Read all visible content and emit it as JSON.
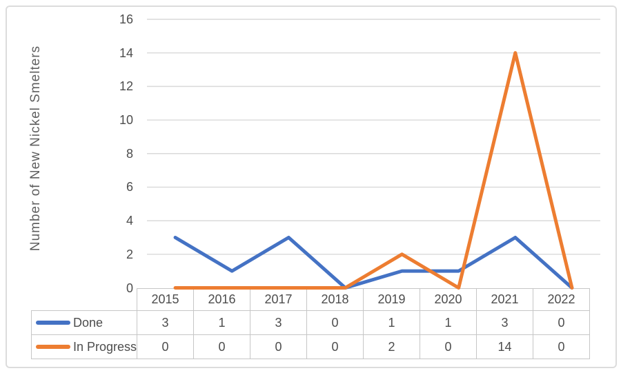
{
  "chart_data": {
    "type": "line",
    "title": "",
    "xlabel": "",
    "ylabel": "Number of New Nickel Smelters",
    "categories": [
      "2015",
      "2016",
      "2017",
      "2018",
      "2019",
      "2020",
      "2021",
      "2022"
    ],
    "series": [
      {
        "name": "Done",
        "color": "#4472C4",
        "values": [
          3,
          1,
          3,
          0,
          1,
          1,
          3,
          0
        ]
      },
      {
        "name": "In Progress",
        "color": "#ED7D31",
        "values": [
          0,
          0,
          0,
          0,
          2,
          0,
          14,
          0
        ]
      }
    ],
    "ylim": [
      0,
      16
    ],
    "yticks": [
      0,
      2,
      4,
      6,
      8,
      10,
      12,
      14,
      16
    ],
    "grid": "horizontal",
    "legend_position": "data-table-left",
    "data_table_shown": true
  },
  "colors": {
    "background": "#FFFFFF",
    "frame_border": "#DCDCDC",
    "gridline": "#D9D9D9",
    "table_border": "#C6C6C6",
    "text": "#4D4D4D",
    "axis_title_text": "#5F5F5F",
    "series_done": "#4472C4",
    "series_in_progress": "#ED7D31"
  }
}
